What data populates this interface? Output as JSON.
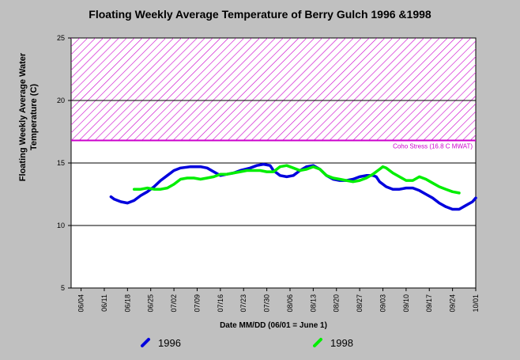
{
  "chart_data": {
    "type": "line",
    "title": "Floating Weekly Average Temperature of Berry Gulch 1996 &1998",
    "xlabel": "Date MM/DD (06/01 = June 1)",
    "ylabel": "Floating Weekly Average Water Temperature (C)",
    "ylim": [
      5,
      25
    ],
    "yticks": [
      5,
      10,
      15,
      20,
      25
    ],
    "xlim": [
      0,
      119
    ],
    "xticks": [
      {
        "day": 3,
        "label": "06/04"
      },
      {
        "day": 10,
        "label": "06/11"
      },
      {
        "day": 17,
        "label": "06/18"
      },
      {
        "day": 24,
        "label": "06/25"
      },
      {
        "day": 31,
        "label": "07/02"
      },
      {
        "day": 38,
        "label": "07/09"
      },
      {
        "day": 45,
        "label": "07/16"
      },
      {
        "day": 52,
        "label": "07/23"
      },
      {
        "day": 59,
        "label": "07/30"
      },
      {
        "day": 66,
        "label": "08/06"
      },
      {
        "day": 73,
        "label": "08/13"
      },
      {
        "day": 80,
        "label": "08/20"
      },
      {
        "day": 87,
        "label": "08/27"
      },
      {
        "day": 94,
        "label": "09/03"
      },
      {
        "day": 101,
        "label": "09/10"
      },
      {
        "day": 108,
        "label": "09/17"
      },
      {
        "day": 115,
        "label": "09/24"
      },
      {
        "day": 122,
        "label": "10/01"
      }
    ],
    "grid": true,
    "legend_position": "bottom",
    "threshold": {
      "label": "Coho Stress (16.8 C MWAT)",
      "value": 16.8,
      "band_top": 25,
      "color": "#cc00cc"
    },
    "series": [
      {
        "name": "1996",
        "color": "#0000dd",
        "points": [
          [
            12,
            12.3
          ],
          [
            13,
            12.1
          ],
          [
            15,
            11.9
          ],
          [
            17,
            11.8
          ],
          [
            19,
            12.0
          ],
          [
            21,
            12.4
          ],
          [
            23,
            12.7
          ],
          [
            25,
            13.1
          ],
          [
            27,
            13.6
          ],
          [
            29,
            14.0
          ],
          [
            31,
            14.4
          ],
          [
            33,
            14.6
          ],
          [
            36,
            14.7
          ],
          [
            39,
            14.7
          ],
          [
            41,
            14.6
          ],
          [
            43,
            14.3
          ],
          [
            45,
            14.0
          ],
          [
            47,
            14.1
          ],
          [
            49,
            14.2
          ],
          [
            51,
            14.4
          ],
          [
            54,
            14.6
          ],
          [
            56,
            14.8
          ],
          [
            58,
            14.9
          ],
          [
            60,
            14.8
          ],
          [
            61,
            14.4
          ],
          [
            63,
            14.0
          ],
          [
            65,
            13.9
          ],
          [
            67,
            14.0
          ],
          [
            69,
            14.4
          ],
          [
            71,
            14.7
          ],
          [
            73,
            14.8
          ],
          [
            75,
            14.5
          ],
          [
            77,
            14.0
          ],
          [
            79,
            13.7
          ],
          [
            81,
            13.6
          ],
          [
            83,
            13.6
          ],
          [
            85,
            13.7
          ],
          [
            87,
            13.9
          ],
          [
            89,
            14.0
          ],
          [
            91,
            14.0
          ],
          [
            92,
            13.9
          ],
          [
            93,
            13.5
          ],
          [
            95,
            13.1
          ],
          [
            97,
            12.9
          ],
          [
            99,
            12.9
          ],
          [
            101,
            13.0
          ],
          [
            103,
            13.0
          ],
          [
            105,
            12.8
          ],
          [
            107,
            12.5
          ],
          [
            109,
            12.2
          ],
          [
            111,
            11.8
          ],
          [
            113,
            11.5
          ],
          [
            115,
            11.3
          ],
          [
            117,
            11.3
          ],
          [
            119,
            11.6
          ],
          [
            121,
            11.9
          ],
          [
            122,
            12.2
          ]
        ]
      },
      {
        "name": "1998",
        "color": "#00ee00",
        "points": [
          [
            19,
            12.9
          ],
          [
            21,
            12.9
          ],
          [
            23,
            13.0
          ],
          [
            25,
            12.9
          ],
          [
            27,
            12.9
          ],
          [
            29,
            13.0
          ],
          [
            31,
            13.3
          ],
          [
            33,
            13.7
          ],
          [
            35,
            13.8
          ],
          [
            37,
            13.8
          ],
          [
            39,
            13.7
          ],
          [
            41,
            13.8
          ],
          [
            43,
            13.9
          ],
          [
            45,
            14.1
          ],
          [
            47,
            14.1
          ],
          [
            49,
            14.2
          ],
          [
            51,
            14.3
          ],
          [
            53,
            14.4
          ],
          [
            55,
            14.4
          ],
          [
            57,
            14.4
          ],
          [
            59,
            14.3
          ],
          [
            61,
            14.3
          ],
          [
            63,
            14.7
          ],
          [
            65,
            14.8
          ],
          [
            67,
            14.6
          ],
          [
            69,
            14.4
          ],
          [
            71,
            14.5
          ],
          [
            73,
            14.7
          ],
          [
            75,
            14.5
          ],
          [
            77,
            14.0
          ],
          [
            79,
            13.8
          ],
          [
            81,
            13.7
          ],
          [
            83,
            13.6
          ],
          [
            85,
            13.5
          ],
          [
            87,
            13.6
          ],
          [
            89,
            13.8
          ],
          [
            91,
            14.1
          ],
          [
            93,
            14.5
          ],
          [
            94,
            14.7
          ],
          [
            95,
            14.6
          ],
          [
            97,
            14.2
          ],
          [
            99,
            13.9
          ],
          [
            101,
            13.6
          ],
          [
            103,
            13.6
          ],
          [
            105,
            13.9
          ],
          [
            107,
            13.7
          ],
          [
            109,
            13.4
          ],
          [
            111,
            13.1
          ],
          [
            113,
            12.9
          ],
          [
            115,
            12.7
          ],
          [
            117,
            12.6
          ]
        ]
      }
    ]
  }
}
